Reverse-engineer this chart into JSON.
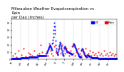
{
  "title": "Milwaukee Weather Evapotranspiration vs Rain per Day (Inches)",
  "title_fontsize": 4.0,
  "background_color": "#ffffff",
  "et_color": "#0000ff",
  "rain_color": "#ff0000",
  "legend_et": "ET",
  "legend_rain": "Rain",
  "legend_fontsize": 3.0,
  "grid_color": "#aaaaaa",
  "ylim": [
    0,
    0.55
  ],
  "months": [
    "Jan",
    "Feb",
    "Mar",
    "Apr",
    "May",
    "Jun",
    "Jul",
    "Aug",
    "Sep",
    "Oct",
    "Nov",
    "Dec"
  ],
  "et_data": [
    [
      1,
      0.01
    ],
    [
      2,
      0.01
    ],
    [
      3,
      0.01
    ],
    [
      4,
      0.01
    ],
    [
      5,
      0.01
    ],
    [
      6,
      0.01
    ],
    [
      7,
      0.01
    ],
    [
      8,
      0.01
    ],
    [
      9,
      0.01
    ],
    [
      10,
      0.01
    ],
    [
      11,
      0.01
    ],
    [
      12,
      0.01
    ],
    [
      13,
      0.01
    ],
    [
      14,
      0.01
    ],
    [
      15,
      0.01
    ],
    [
      16,
      0.01
    ],
    [
      17,
      0.01
    ],
    [
      18,
      0.01
    ],
    [
      19,
      0.01
    ],
    [
      20,
      0.01
    ],
    [
      21,
      0.01
    ],
    [
      22,
      0.01
    ],
    [
      23,
      0.01
    ],
    [
      24,
      0.01
    ],
    [
      25,
      0.01
    ],
    [
      26,
      0.01
    ],
    [
      27,
      0.01
    ],
    [
      28,
      0.01
    ],
    [
      29,
      0.01
    ],
    [
      30,
      0.01
    ],
    [
      31,
      0.01
    ],
    [
      32,
      0.02
    ],
    [
      33,
      0.02
    ],
    [
      34,
      0.02
    ],
    [
      35,
      0.02
    ],
    [
      36,
      0.02
    ],
    [
      37,
      0.02
    ],
    [
      38,
      0.02
    ],
    [
      39,
      0.02
    ],
    [
      40,
      0.02
    ],
    [
      41,
      0.02
    ],
    [
      42,
      0.02
    ],
    [
      43,
      0.02
    ],
    [
      44,
      0.02
    ],
    [
      45,
      0.02
    ],
    [
      46,
      0.02
    ],
    [
      47,
      0.02
    ],
    [
      48,
      0.02
    ],
    [
      49,
      0.02
    ],
    [
      50,
      0.02
    ],
    [
      51,
      0.02
    ],
    [
      52,
      0.02
    ],
    [
      53,
      0.02
    ],
    [
      54,
      0.02
    ],
    [
      55,
      0.02
    ],
    [
      56,
      0.02
    ],
    [
      57,
      0.02
    ],
    [
      58,
      0.02
    ],
    [
      59,
      0.02
    ],
    [
      60,
      0.03
    ],
    [
      61,
      0.03
    ],
    [
      62,
      0.03
    ],
    [
      63,
      0.03
    ],
    [
      64,
      0.03
    ],
    [
      65,
      0.03
    ],
    [
      66,
      0.03
    ],
    [
      67,
      0.03
    ],
    [
      68,
      0.03
    ],
    [
      69,
      0.03
    ],
    [
      70,
      0.03
    ],
    [
      71,
      0.03
    ],
    [
      72,
      0.03
    ],
    [
      73,
      0.03
    ],
    [
      74,
      0.03
    ],
    [
      75,
      0.03
    ],
    [
      76,
      0.03
    ],
    [
      77,
      0.03
    ],
    [
      78,
      0.03
    ],
    [
      79,
      0.03
    ],
    [
      80,
      0.03
    ],
    [
      81,
      0.03
    ],
    [
      82,
      0.03
    ],
    [
      83,
      0.03
    ],
    [
      84,
      0.03
    ],
    [
      85,
      0.03
    ],
    [
      86,
      0.03
    ],
    [
      87,
      0.03
    ],
    [
      88,
      0.03
    ],
    [
      89,
      0.03
    ],
    [
      90,
      0.03
    ],
    [
      91,
      0.05
    ],
    [
      92,
      0.05
    ],
    [
      93,
      0.05
    ],
    [
      94,
      0.05
    ],
    [
      95,
      0.05
    ],
    [
      96,
      0.05
    ],
    [
      97,
      0.05
    ],
    [
      98,
      0.05
    ],
    [
      99,
      0.05
    ],
    [
      100,
      0.05
    ],
    [
      101,
      0.05
    ],
    [
      102,
      0.05
    ],
    [
      103,
      0.05
    ],
    [
      104,
      0.05
    ],
    [
      105,
      0.05
    ],
    [
      106,
      0.05
    ],
    [
      107,
      0.05
    ],
    [
      108,
      0.05
    ],
    [
      109,
      0.05
    ],
    [
      110,
      0.05
    ],
    [
      111,
      0.05
    ],
    [
      112,
      0.05
    ],
    [
      113,
      0.05
    ],
    [
      114,
      0.05
    ],
    [
      115,
      0.05
    ],
    [
      116,
      0.05
    ],
    [
      117,
      0.05
    ],
    [
      118,
      0.05
    ],
    [
      119,
      0.05
    ],
    [
      120,
      0.05
    ],
    [
      121,
      0.08
    ],
    [
      122,
      0.09
    ],
    [
      123,
      0.1
    ],
    [
      124,
      0.11
    ],
    [
      125,
      0.12
    ],
    [
      126,
      0.13
    ],
    [
      127,
      0.14
    ],
    [
      128,
      0.15
    ],
    [
      129,
      0.16
    ],
    [
      130,
      0.17
    ],
    [
      131,
      0.18
    ],
    [
      132,
      0.19
    ],
    [
      133,
      0.2
    ],
    [
      134,
      0.19
    ],
    [
      135,
      0.18
    ],
    [
      136,
      0.17
    ],
    [
      137,
      0.16
    ],
    [
      138,
      0.15
    ],
    [
      139,
      0.14
    ],
    [
      140,
      0.13
    ],
    [
      141,
      0.22
    ],
    [
      142,
      0.23
    ],
    [
      143,
      0.26
    ],
    [
      144,
      0.3
    ],
    [
      145,
      0.35
    ],
    [
      146,
      0.4
    ],
    [
      147,
      0.45
    ],
    [
      148,
      0.5
    ],
    [
      149,
      0.45
    ],
    [
      150,
      0.4
    ],
    [
      151,
      0.35
    ],
    [
      152,
      0.25
    ],
    [
      153,
      0.2
    ],
    [
      154,
      0.15
    ],
    [
      155,
      0.12
    ],
    [
      156,
      0.1
    ],
    [
      157,
      0.09
    ],
    [
      158,
      0.08
    ],
    [
      159,
      0.07
    ],
    [
      160,
      0.06
    ],
    [
      161,
      0.1
    ],
    [
      162,
      0.12
    ],
    [
      163,
      0.14
    ],
    [
      164,
      0.16
    ],
    [
      165,
      0.18
    ],
    [
      166,
      0.2
    ],
    [
      167,
      0.22
    ],
    [
      168,
      0.24
    ],
    [
      169,
      0.22
    ],
    [
      170,
      0.2
    ],
    [
      171,
      0.18
    ],
    [
      172,
      0.16
    ],
    [
      173,
      0.14
    ],
    [
      174,
      0.12
    ],
    [
      175,
      0.1
    ],
    [
      176,
      0.08
    ],
    [
      177,
      0.07
    ],
    [
      178,
      0.06
    ],
    [
      179,
      0.05
    ],
    [
      180,
      0.05
    ],
    [
      181,
      0.15
    ],
    [
      182,
      0.16
    ],
    [
      183,
      0.17
    ],
    [
      184,
      0.18
    ],
    [
      185,
      0.17
    ],
    [
      186,
      0.16
    ],
    [
      187,
      0.15
    ],
    [
      188,
      0.14
    ],
    [
      189,
      0.13
    ],
    [
      190,
      0.12
    ],
    [
      191,
      0.11
    ],
    [
      192,
      0.1
    ],
    [
      193,
      0.1
    ],
    [
      194,
      0.1
    ],
    [
      195,
      0.1
    ],
    [
      196,
      0.1
    ],
    [
      197,
      0.1
    ],
    [
      198,
      0.1
    ],
    [
      199,
      0.09
    ],
    [
      200,
      0.09
    ],
    [
      201,
      0.09
    ],
    [
      202,
      0.09
    ],
    [
      203,
      0.08
    ],
    [
      204,
      0.08
    ],
    [
      205,
      0.08
    ],
    [
      206,
      0.08
    ],
    [
      207,
      0.07
    ],
    [
      208,
      0.07
    ],
    [
      209,
      0.07
    ],
    [
      210,
      0.07
    ],
    [
      211,
      0.18
    ],
    [
      212,
      0.19
    ],
    [
      213,
      0.2
    ],
    [
      214,
      0.21
    ],
    [
      215,
      0.22
    ],
    [
      216,
      0.21
    ],
    [
      217,
      0.2
    ],
    [
      218,
      0.19
    ],
    [
      219,
      0.18
    ],
    [
      220,
      0.17
    ],
    [
      221,
      0.16
    ],
    [
      222,
      0.15
    ],
    [
      223,
      0.14
    ],
    [
      224,
      0.13
    ],
    [
      225,
      0.12
    ],
    [
      226,
      0.11
    ],
    [
      227,
      0.1
    ],
    [
      228,
      0.09
    ],
    [
      229,
      0.08
    ],
    [
      230,
      0.07
    ],
    [
      231,
      0.06
    ],
    [
      232,
      0.05
    ],
    [
      233,
      0.04
    ],
    [
      234,
      0.04
    ],
    [
      235,
      0.04
    ],
    [
      236,
      0.03
    ],
    [
      237,
      0.03
    ],
    [
      238,
      0.03
    ],
    [
      239,
      0.03
    ],
    [
      240,
      0.03
    ],
    [
      241,
      0.12
    ],
    [
      242,
      0.13
    ],
    [
      243,
      0.14
    ],
    [
      244,
      0.15
    ],
    [
      245,
      0.14
    ],
    [
      246,
      0.13
    ],
    [
      247,
      0.12
    ],
    [
      248,
      0.11
    ],
    [
      249,
      0.1
    ],
    [
      250,
      0.09
    ],
    [
      251,
      0.08
    ],
    [
      252,
      0.07
    ],
    [
      253,
      0.06
    ],
    [
      254,
      0.05
    ],
    [
      255,
      0.05
    ],
    [
      256,
      0.05
    ],
    [
      257,
      0.04
    ],
    [
      258,
      0.04
    ],
    [
      259,
      0.03
    ],
    [
      260,
      0.03
    ],
    [
      261,
      0.06
    ],
    [
      262,
      0.06
    ],
    [
      263,
      0.06
    ],
    [
      264,
      0.05
    ],
    [
      265,
      0.05
    ],
    [
      266,
      0.05
    ],
    [
      267,
      0.05
    ],
    [
      268,
      0.04
    ],
    [
      269,
      0.04
    ],
    [
      270,
      0.04
    ],
    [
      271,
      0.04
    ],
    [
      272,
      0.03
    ],
    [
      273,
      0.03
    ],
    [
      274,
      0.03
    ],
    [
      275,
      0.03
    ],
    [
      276,
      0.03
    ],
    [
      277,
      0.02
    ],
    [
      278,
      0.02
    ],
    [
      279,
      0.02
    ],
    [
      280,
      0.02
    ],
    [
      281,
      0.02
    ],
    [
      282,
      0.02
    ],
    [
      283,
      0.02
    ],
    [
      284,
      0.02
    ],
    [
      285,
      0.02
    ],
    [
      286,
      0.02
    ],
    [
      287,
      0.02
    ],
    [
      288,
      0.02
    ],
    [
      289,
      0.02
    ],
    [
      290,
      0.02
    ],
    [
      291,
      0.02
    ],
    [
      292,
      0.02
    ],
    [
      293,
      0.02
    ],
    [
      294,
      0.02
    ],
    [
      295,
      0.02
    ],
    [
      296,
      0.02
    ],
    [
      297,
      0.02
    ],
    [
      298,
      0.02
    ],
    [
      299,
      0.01
    ],
    [
      300,
      0.01
    ],
    [
      301,
      0.01
    ],
    [
      302,
      0.01
    ],
    [
      303,
      0.01
    ],
    [
      304,
      0.01
    ],
    [
      305,
      0.01
    ],
    [
      306,
      0.01
    ],
    [
      307,
      0.01
    ],
    [
      308,
      0.01
    ],
    [
      309,
      0.01
    ],
    [
      310,
      0.01
    ],
    [
      311,
      0.01
    ],
    [
      312,
      0.01
    ],
    [
      313,
      0.01
    ],
    [
      314,
      0.01
    ],
    [
      315,
      0.01
    ],
    [
      316,
      0.01
    ],
    [
      317,
      0.01
    ],
    [
      318,
      0.01
    ],
    [
      319,
      0.01
    ],
    [
      320,
      0.01
    ],
    [
      321,
      0.01
    ],
    [
      322,
      0.01
    ],
    [
      323,
      0.01
    ],
    [
      324,
      0.01
    ],
    [
      325,
      0.01
    ],
    [
      326,
      0.01
    ],
    [
      327,
      0.01
    ],
    [
      328,
      0.01
    ],
    [
      329,
      0.01
    ],
    [
      330,
      0.01
    ],
    [
      331,
      0.01
    ],
    [
      332,
      0.01
    ],
    [
      333,
      0.01
    ],
    [
      334,
      0.01
    ],
    [
      335,
      0.01
    ],
    [
      336,
      0.01
    ],
    [
      337,
      0.01
    ],
    [
      338,
      0.01
    ],
    [
      339,
      0.01
    ],
    [
      340,
      0.01
    ],
    [
      341,
      0.01
    ],
    [
      342,
      0.01
    ],
    [
      343,
      0.01
    ],
    [
      344,
      0.01
    ],
    [
      345,
      0.01
    ],
    [
      346,
      0.01
    ],
    [
      347,
      0.01
    ],
    [
      348,
      0.01
    ],
    [
      349,
      0.01
    ],
    [
      350,
      0.01
    ],
    [
      351,
      0.01
    ],
    [
      352,
      0.01
    ],
    [
      353,
      0.01
    ],
    [
      354,
      0.01
    ],
    [
      355,
      0.01
    ],
    [
      356,
      0.01
    ],
    [
      357,
      0.01
    ],
    [
      358,
      0.01
    ],
    [
      359,
      0.01
    ],
    [
      360,
      0.01
    ],
    [
      361,
      0.01
    ],
    [
      362,
      0.01
    ],
    [
      363,
      0.01
    ],
    [
      364,
      0.01
    ],
    [
      365,
      0.01
    ]
  ],
  "rain_data": [
    [
      5,
      0.05
    ],
    [
      12,
      0.08
    ],
    [
      18,
      0.03
    ],
    [
      25,
      0.12
    ],
    [
      35,
      0.06
    ],
    [
      42,
      0.15
    ],
    [
      50,
      0.04
    ],
    [
      58,
      0.09
    ],
    [
      65,
      0.07
    ],
    [
      72,
      0.05
    ],
    [
      80,
      0.12
    ],
    [
      88,
      0.06
    ],
    [
      95,
      0.08
    ],
    [
      100,
      0.2
    ],
    [
      105,
      0.1
    ],
    [
      112,
      0.05
    ],
    [
      118,
      0.08
    ],
    [
      125,
      0.05
    ],
    [
      130,
      0.22
    ],
    [
      135,
      0.12
    ],
    [
      138,
      0.08
    ],
    [
      142,
      0.05
    ],
    [
      148,
      0.18
    ],
    [
      155,
      0.1
    ],
    [
      160,
      0.06
    ],
    [
      165,
      0.15
    ],
    [
      170,
      0.08
    ],
    [
      175,
      0.2
    ],
    [
      180,
      0.12
    ],
    [
      185,
      0.08
    ],
    [
      190,
      0.15
    ],
    [
      195,
      0.1
    ],
    [
      200,
      0.05
    ],
    [
      205,
      0.12
    ],
    [
      210,
      0.18
    ],
    [
      215,
      0.08
    ],
    [
      220,
      0.05
    ],
    [
      225,
      0.1
    ],
    [
      230,
      0.15
    ],
    [
      235,
      0.08
    ],
    [
      240,
      0.05
    ],
    [
      245,
      0.12
    ],
    [
      250,
      0.08
    ],
    [
      255,
      0.15
    ],
    [
      260,
      0.05
    ],
    [
      265,
      0.08
    ],
    [
      270,
      0.12
    ],
    [
      275,
      0.05
    ],
    [
      280,
      0.1
    ],
    [
      285,
      0.06
    ],
    [
      290,
      0.08
    ],
    [
      295,
      0.05
    ],
    [
      300,
      0.1
    ],
    [
      305,
      0.06
    ],
    [
      310,
      0.08
    ],
    [
      315,
      0.05
    ],
    [
      320,
      0.12
    ],
    [
      325,
      0.06
    ],
    [
      330,
      0.08
    ],
    [
      335,
      0.05
    ],
    [
      340,
      0.1
    ],
    [
      345,
      0.06
    ],
    [
      350,
      0.08
    ],
    [
      355,
      0.05
    ],
    [
      360,
      0.07
    ]
  ],
  "month_starts": [
    1,
    32,
    60,
    91,
    121,
    152,
    182,
    213,
    244,
    274,
    305,
    335
  ],
  "month_labels": [
    "Jan",
    "Feb",
    "Mar",
    "Apr",
    "May",
    "Jun",
    "Jul",
    "Aug",
    "Sep",
    "Oct",
    "Nov",
    "Dec"
  ],
  "xlim": [
    1,
    365
  ],
  "marker_size": 1.0,
  "dot_size": 0.8
}
